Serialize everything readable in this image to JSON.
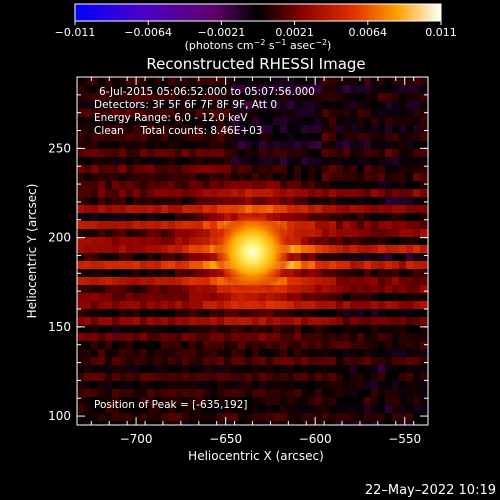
{
  "chart_data": {
    "type": "heatmap",
    "title": "Reconstructed RHESSI Image",
    "xlabel": "Heliocentric X (arcsec)",
    "ylabel": "Heliocentric Y (arcsec)",
    "xlim": [
      -733,
      -537
    ],
    "ylim": [
      95,
      290
    ],
    "x_ticks": [
      -700,
      -650,
      -600,
      -550
    ],
    "x_tick_labels": [
      "−700",
      "−650",
      "−600",
      "−550"
    ],
    "y_ticks": [
      100,
      150,
      200,
      250
    ],
    "y_tick_labels": [
      "100",
      "150",
      "200",
      "250"
    ],
    "peak": {
      "x": -635,
      "y": 192
    },
    "annotations": {
      "time_range": "6-Jul-2015 05:06:52.000 to 05:07:56.000",
      "detectors": "Detectors: 3F 5F 6F 7F 8F 9F, Att 0",
      "energy": "Energy Range: 6.0 - 12.0 keV",
      "clean": "Clean     Total counts: 8.46E+03",
      "peak_text": "Position of Peak = [-635,192]"
    },
    "colorbar": {
      "range": [
        -0.011,
        0.011
      ],
      "tick_labels": [
        "−0.011",
        "−0.0064",
        "−0.0021",
        "0.0021",
        "0.0064",
        "0.011"
      ],
      "unit_label": "(photons cm",
      "unit_exp1": "−2",
      "unit_mid": " s",
      "unit_exp2": "−1",
      "unit_end": " asec",
      "unit_exp3": "−2",
      "unit_close": ")"
    },
    "grid": false,
    "legend": "none"
  },
  "footer": {
    "timestamp": "22–May–2022 10:19"
  }
}
